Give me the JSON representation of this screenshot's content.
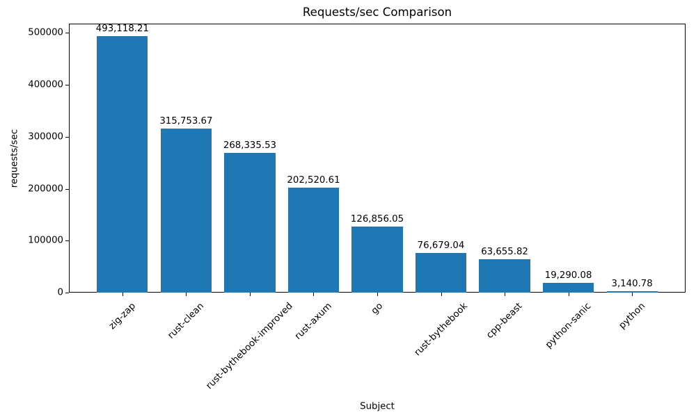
{
  "chart_data": {
    "type": "bar",
    "title": "Requests/sec Comparison",
    "xlabel": "Subject",
    "ylabel": "requests/sec",
    "categories": [
      "zig-zap",
      "rust-clean",
      "rust-bythebook-improved",
      "rust-axum",
      "go",
      "rust-bythebook",
      "cpp-beast",
      "python-sanic",
      "python"
    ],
    "values": [
      493118.21,
      315753.67,
      268335.53,
      202520.61,
      126856.05,
      76679.04,
      63655.82,
      19290.08,
      3140.78
    ],
    "value_labels": [
      "493,118.21",
      "315,753.67",
      "268,335.53",
      "202,520.61",
      "126,856.05",
      "76,679.04",
      "63,655.82",
      "19,290.08",
      "3,140.78"
    ],
    "yticks": [
      0,
      100000,
      200000,
      300000,
      400000,
      500000
    ],
    "ytick_labels": [
      "0",
      "100000",
      "200000",
      "300000",
      "400000",
      "500000"
    ],
    "ylim": [
      0,
      517774
    ],
    "xlim": [
      -0.84,
      8.84
    ],
    "bar_width": 0.8,
    "bar_color": "#1f77b4",
    "text_color": "#000000",
    "grid": false,
    "legend_position": "none",
    "x_tick_rotation": 45
  }
}
